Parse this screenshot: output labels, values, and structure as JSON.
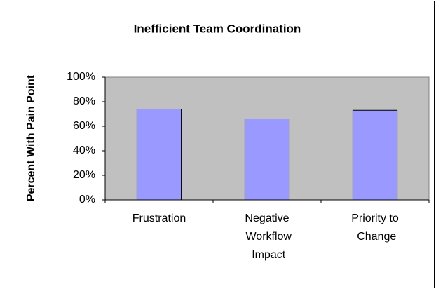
{
  "chart_data": {
    "type": "bar",
    "title": "Inefficient Team Coordination",
    "y_label": "Percent With Pain Point",
    "categories": [
      "Frustration",
      "Negative Workflow Impact",
      "Priority to Change"
    ],
    "values": [
      74,
      66,
      73
    ],
    "color": "#9999ff",
    "plot_background": "#c0c0c0",
    "ylim": [
      0,
      100
    ],
    "yticks": [
      {
        "value": 0,
        "label": "0%"
      },
      {
        "value": 20,
        "label": "20%"
      },
      {
        "value": 40,
        "label": "40%"
      },
      {
        "value": 60,
        "label": "60%"
      },
      {
        "value": 80,
        "label": "80%"
      },
      {
        "value": 100,
        "label": "100%"
      }
    ],
    "grid": false
  }
}
